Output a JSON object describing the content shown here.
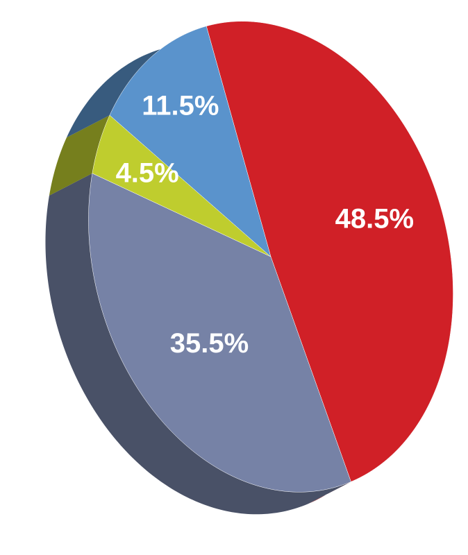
{
  "chart_data": {
    "type": "pie",
    "categories": [
      null,
      null,
      null,
      null
    ],
    "values": [
      48.5,
      35.5,
      4.5,
      11.5
    ],
    "value_labels": [
      "48.5%",
      "35.5%",
      "4.5%",
      "11.5%"
    ],
    "colors": [
      "#d02027",
      "#7682a6",
      "#bfcd2e",
      "#5a93cc"
    ]
  }
}
